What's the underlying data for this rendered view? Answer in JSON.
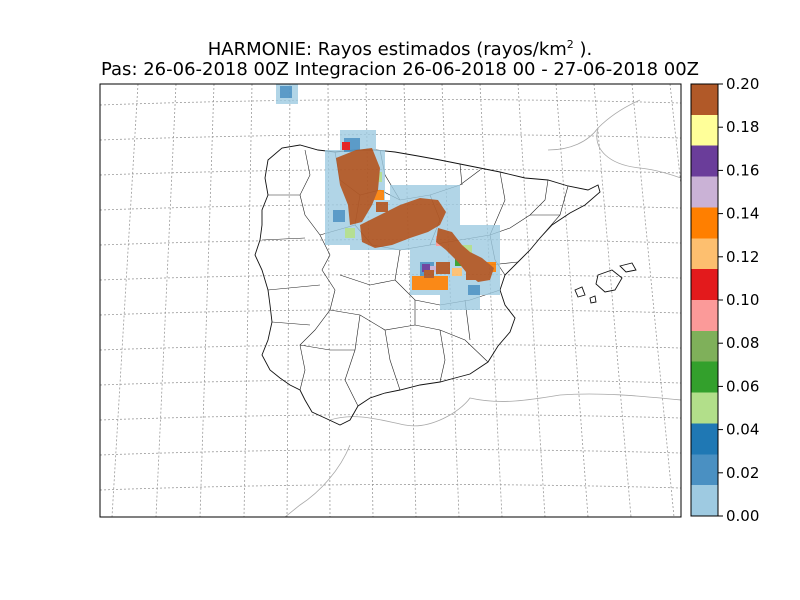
{
  "title": {
    "line1_prefix": "HARMONIE: Rayos estimados  (rayos/km",
    "line1_sup": "2",
    "line1_suffix": " ).",
    "line2": "Pas: 26-06-2018 00Z Integracion 26-06-2018 00 - 27-06-2018 00Z"
  },
  "colorbar": {
    "ticks": [
      "0.00",
      "0.02",
      "0.04",
      "0.06",
      "0.08",
      "0.10",
      "0.12",
      "0.14",
      "0.16",
      "0.18",
      "0.20"
    ],
    "range": [
      0,
      0.2
    ],
    "colors": [
      "#9ecae1",
      "#4a90c2",
      "#1f78b4",
      "#b2df8a",
      "#33a02c",
      "#7fb05a",
      "#fb9a99",
      "#e31a1c",
      "#fdbf6f",
      "#ff7f00",
      "#cab2d6",
      "#6a3d9a",
      "#ffff99",
      "#b15928"
    ]
  },
  "map": {
    "region": "Iberian Peninsula",
    "graticule": "dashed grey",
    "dominant_field_color": "#b15928"
  }
}
